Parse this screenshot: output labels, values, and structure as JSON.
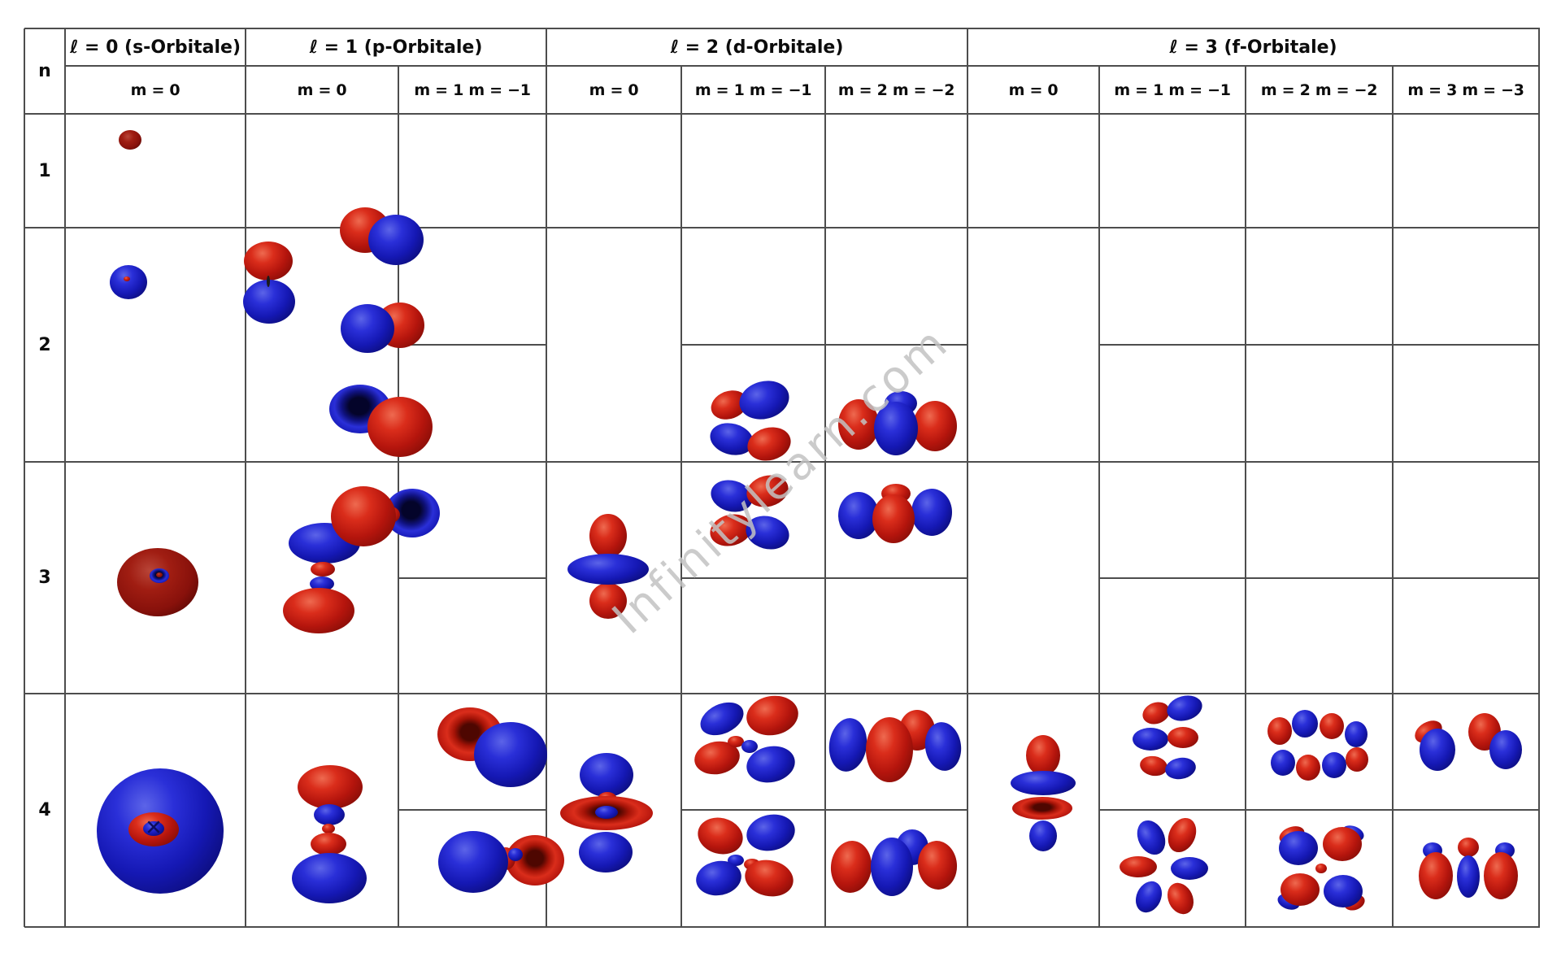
{
  "header": {
    "n_label": "n",
    "row_labels": [
      "1",
      "2",
      "3",
      "4"
    ],
    "sections": [
      {
        "l_label": "ℓ = 0 (s-Orbitale)",
        "m_labels": [
          "m = 0"
        ]
      },
      {
        "l_label": "ℓ = 1 (p-Orbitale)",
        "m_labels": [
          "m = 0",
          "m = 1  m = −1"
        ]
      },
      {
        "l_label": "ℓ = 2 (d-Orbitale)",
        "m_labels": [
          "m = 0",
          "m = 1  m = −1",
          "m = 2  m = −2"
        ]
      },
      {
        "l_label": "ℓ = 3 (f-Orbitale)",
        "m_labels": [
          "m = 0",
          "m = 1  m = −1",
          "m = 2  m = −2",
          "m = 3  m = −3"
        ]
      }
    ]
  },
  "watermark": {
    "text": "Infinitylearn.com",
    "color": "#c3c3c3"
  },
  "colors": {
    "lobe_red": "#c41a12",
    "lobe_red_dark": "#99150f",
    "lobe_blue": "#1c1ecf",
    "grid": "#4d4d4d",
    "background": "#ffffff"
  },
  "orbitals": [
    {
      "name": "1s-m0",
      "lobes": [
        [
          160,
          172,
          14,
          12,
          "R",
          0
        ]
      ]
    },
    {
      "name": "2s-m0",
      "lobes": [
        [
          158,
          347,
          23,
          21,
          "b",
          0
        ],
        [
          156,
          343,
          4,
          3,
          "r",
          0
        ]
      ]
    },
    {
      "name": "3s-m0",
      "lobes": [
        [
          194,
          716,
          50,
          42,
          "R",
          0
        ],
        [
          196,
          708,
          12,
          9,
          "bt",
          0
        ],
        [
          196,
          707,
          4,
          3,
          "R",
          0
        ]
      ]
    },
    {
      "name": "4s-m0",
      "lobes": [
        [
          197,
          1022,
          78,
          77,
          "b",
          0
        ],
        [
          189,
          1020,
          31,
          21,
          "r",
          0
        ],
        [
          189,
          1019,
          13,
          9,
          "b",
          0
        ]
      ],
      "mark": [
        189,
        1019,
        "✕",
        26
      ]
    },
    {
      "name": "2p-m0",
      "lobes": [
        [
          330,
          321,
          30,
          24,
          "r",
          0
        ],
        [
          331,
          371,
          32,
          27,
          "b",
          0
        ],
        [
          330,
          346,
          2,
          7,
          "k",
          0
        ]
      ]
    },
    {
      "name": "2p-m+1",
      "lobes": [
        [
          449,
          283,
          31,
          28,
          "r",
          0
        ],
        [
          487,
          295,
          34,
          31,
          "b",
          0
        ]
      ]
    },
    {
      "name": "2p-m-1",
      "lobes": [
        [
          492,
          400,
          30,
          28,
          "r",
          0
        ],
        [
          452,
          404,
          33,
          30,
          "b",
          0
        ]
      ]
    },
    {
      "name": "3p-m0",
      "lobes": [
        [
          399,
          668,
          44,
          25,
          "b",
          0
        ],
        [
          397,
          700,
          15,
          9,
          "r",
          0
        ],
        [
          396,
          718,
          15,
          9,
          "b",
          0
        ],
        [
          392,
          751,
          44,
          28,
          "r",
          0
        ]
      ]
    },
    {
      "name": "3p-m+1",
      "lobes": [
        [
          443,
          503,
          38,
          30,
          "bt",
          0
        ],
        [
          492,
          525,
          40,
          37,
          "r",
          0
        ]
      ]
    },
    {
      "name": "3p-m-1",
      "lobes": [
        [
          507,
          631,
          34,
          30,
          "bt",
          0
        ],
        [
          480,
          633,
          12,
          10,
          "r",
          0
        ],
        [
          447,
          635,
          40,
          37,
          "r",
          0
        ]
      ]
    },
    {
      "name": "4p-m0",
      "lobes": [
        [
          406,
          968,
          40,
          27,
          "r",
          0
        ],
        [
          405,
          1002,
          19,
          13,
          "b",
          0
        ],
        [
          404,
          1019,
          8,
          6,
          "r",
          0
        ],
        [
          404,
          1038,
          22,
          14,
          "r",
          0
        ],
        [
          405,
          1080,
          46,
          31,
          "b",
          0
        ]
      ]
    },
    {
      "name": "4p-m+1",
      "lobes": [
        [
          578,
          903,
          40,
          33,
          "rt",
          0
        ],
        [
          628,
          928,
          45,
          40,
          "b",
          0
        ]
      ]
    },
    {
      "name": "4p-m-1",
      "lobes": [
        [
          658,
          1058,
          36,
          31,
          "rt",
          0
        ],
        [
          622,
          1056,
          12,
          14,
          "r",
          0
        ],
        [
          634,
          1051,
          9,
          8,
          "b",
          0
        ],
        [
          582,
          1060,
          43,
          38,
          "b",
          0
        ]
      ]
    },
    {
      "name": "3d-m0",
      "lobes": [
        [
          748,
          659,
          23,
          27,
          "r",
          0
        ],
        [
          748,
          739,
          23,
          22,
          "r",
          0
        ],
        [
          748,
          700,
          50,
          19,
          "b",
          0
        ]
      ]
    },
    {
      "name": "3d-m+1",
      "lobes": [
        [
          897,
          498,
          23,
          17,
          "r",
          -20
        ],
        [
          940,
          492,
          31,
          23,
          "b",
          -15
        ],
        [
          900,
          540,
          27,
          19,
          "b",
          15
        ],
        [
          946,
          546,
          27,
          20,
          "r",
          -15
        ]
      ]
    },
    {
      "name": "3d-m-1",
      "lobes": [
        [
          900,
          610,
          26,
          19,
          "b",
          15
        ],
        [
          944,
          604,
          26,
          19,
          "r",
          -15
        ],
        [
          899,
          652,
          26,
          19,
          "r",
          -15
        ],
        [
          944,
          655,
          27,
          20,
          "b",
          15
        ]
      ]
    },
    {
      "name": "3d-m+2",
      "lobes": [
        [
          1108,
          496,
          20,
          15,
          "b",
          0
        ],
        [
          1056,
          522,
          25,
          31,
          "r",
          0
        ],
        [
          1150,
          524,
          27,
          31,
          "r",
          0
        ],
        [
          1102,
          527,
          27,
          33,
          "b",
          0
        ]
      ]
    },
    {
      "name": "3d-m-2",
      "lobes": [
        [
          1102,
          607,
          18,
          12,
          "r",
          0
        ],
        [
          1146,
          630,
          25,
          29,
          "b",
          0
        ],
        [
          1056,
          634,
          25,
          29,
          "b",
          0
        ],
        [
          1099,
          638,
          26,
          30,
          "r",
          0
        ]
      ]
    },
    {
      "name": "4d-m0",
      "lobes": [
        [
          746,
          953,
          33,
          27,
          "b",
          0
        ],
        [
          745,
          1048,
          33,
          25,
          "b",
          0
        ],
        [
          747,
          983,
          12,
          9,
          "r",
          0
        ],
        [
          746,
          1000,
          57,
          21,
          "rt",
          0
        ],
        [
          746,
          999,
          14,
          8,
          "b",
          0
        ]
      ]
    },
    {
      "name": "4d-m+1",
      "lobes": [
        [
          888,
          884,
          28,
          18,
          "b",
          -25
        ],
        [
          950,
          880,
          32,
          24,
          "r",
          -10
        ],
        [
          882,
          932,
          28,
          20,
          "r",
          -10
        ],
        [
          905,
          912,
          10,
          7,
          "r",
          0
        ],
        [
          922,
          918,
          10,
          8,
          "b",
          0
        ],
        [
          948,
          940,
          30,
          22,
          "b",
          -12
        ]
      ]
    },
    {
      "name": "4d-m-1",
      "lobes": [
        [
          886,
          1028,
          28,
          22,
          "r",
          15
        ],
        [
          948,
          1024,
          30,
          22,
          "b",
          -12
        ],
        [
          905,
          1058,
          10,
          7,
          "b",
          0
        ],
        [
          925,
          1063,
          10,
          7,
          "r",
          0
        ],
        [
          884,
          1080,
          28,
          21,
          "b",
          -10
        ],
        [
          946,
          1080,
          30,
          22,
          "r",
          12
        ]
      ]
    },
    {
      "name": "4d-m+2",
      "lobes": [
        [
          1128,
          898,
          22,
          25,
          "r",
          0
        ],
        [
          1043,
          916,
          23,
          33,
          "b",
          8
        ],
        [
          1160,
          918,
          22,
          30,
          "b",
          -8
        ],
        [
          1094,
          922,
          29,
          40,
          "r",
          0
        ]
      ]
    },
    {
      "name": "4d-m-2",
      "lobes": [
        [
          1122,
          1042,
          20,
          22,
          "b",
          0
        ],
        [
          1047,
          1066,
          25,
          32,
          "r",
          5
        ],
        [
          1153,
          1064,
          24,
          30,
          "r",
          -5
        ],
        [
          1097,
          1066,
          26,
          36,
          "b",
          0
        ]
      ]
    },
    {
      "name": "4f-m0",
      "lobes": [
        [
          1283,
          929,
          21,
          25,
          "r",
          0
        ],
        [
          1283,
          1028,
          17,
          19,
          "b",
          0
        ],
        [
          1283,
          963,
          40,
          15,
          "b",
          0
        ],
        [
          1282,
          994,
          37,
          14,
          "rt",
          0
        ]
      ]
    },
    {
      "name": "4f-m+1",
      "lobes": [
        [
          1422,
          877,
          17,
          13,
          "r",
          -20
        ],
        [
          1457,
          871,
          22,
          15,
          "b",
          -15
        ],
        [
          1415,
          909,
          22,
          14,
          "b",
          0
        ],
        [
          1455,
          907,
          19,
          13,
          "r",
          0
        ],
        [
          1419,
          942,
          17,
          12,
          "r",
          10
        ],
        [
          1452,
          945,
          19,
          13,
          "b",
          -10
        ]
      ]
    },
    {
      "name": "4f-m-1",
      "lobes": [
        [
          1416,
          1030,
          16,
          22,
          "b",
          -25
        ],
        [
          1454,
          1027,
          16,
          22,
          "r",
          25
        ],
        [
          1400,
          1066,
          23,
          13,
          "r",
          0
        ],
        [
          1463,
          1068,
          23,
          14,
          "b",
          0
        ],
        [
          1413,
          1103,
          15,
          20,
          "b",
          25
        ],
        [
          1452,
          1105,
          15,
          20,
          "r",
          -25
        ]
      ]
    },
    {
      "name": "4f-m+2",
      "lobes": [
        [
          1574,
          899,
          15,
          17,
          "r",
          0
        ],
        [
          1605,
          890,
          16,
          17,
          "b",
          0
        ],
        [
          1638,
          893,
          15,
          16,
          "r",
          0
        ],
        [
          1668,
          903,
          14,
          16,
          "b",
          0
        ],
        [
          1578,
          938,
          15,
          16,
          "b",
          0
        ],
        [
          1609,
          944,
          15,
          16,
          "r",
          0
        ],
        [
          1641,
          941,
          15,
          16,
          "b",
          0
        ],
        [
          1669,
          934,
          14,
          15,
          "r",
          0
        ]
      ]
    },
    {
      "name": "4f-m-2",
      "lobes": [
        [
          1589,
          1027,
          16,
          10,
          "r",
          -20
        ],
        [
          1664,
          1025,
          14,
          9,
          "b",
          20
        ],
        [
          1585,
          1109,
          14,
          9,
          "b",
          20
        ],
        [
          1666,
          1110,
          13,
          9,
          "r",
          -20
        ],
        [
          1597,
          1043,
          24,
          21,
          "b",
          0
        ],
        [
          1651,
          1038,
          24,
          21,
          "r",
          0
        ],
        [
          1599,
          1094,
          24,
          20,
          "r",
          0
        ],
        [
          1652,
          1096,
          24,
          20,
          "b",
          0
        ],
        [
          1625,
          1068,
          7,
          6,
          "r",
          0
        ]
      ]
    },
    {
      "name": "4f-m+3",
      "lobes": [
        [
          1757,
          900,
          18,
          12,
          "r",
          -30
        ],
        [
          1768,
          922,
          22,
          26,
          "b",
          0
        ],
        [
          1826,
          900,
          20,
          23,
          "r",
          0
        ],
        [
          1852,
          922,
          20,
          24,
          "b",
          0
        ]
      ]
    },
    {
      "name": "4f-m-3",
      "lobes": [
        [
          1762,
          1046,
          12,
          10,
          "b",
          0
        ],
        [
          1851,
          1046,
          12,
          10,
          "b",
          0
        ],
        [
          1806,
          1042,
          13,
          12,
          "r",
          0
        ],
        [
          1766,
          1077,
          21,
          29,
          "r",
          0
        ],
        [
          1846,
          1077,
          21,
          29,
          "r",
          0
        ],
        [
          1806,
          1078,
          14,
          26,
          "b",
          0
        ]
      ]
    }
  ]
}
